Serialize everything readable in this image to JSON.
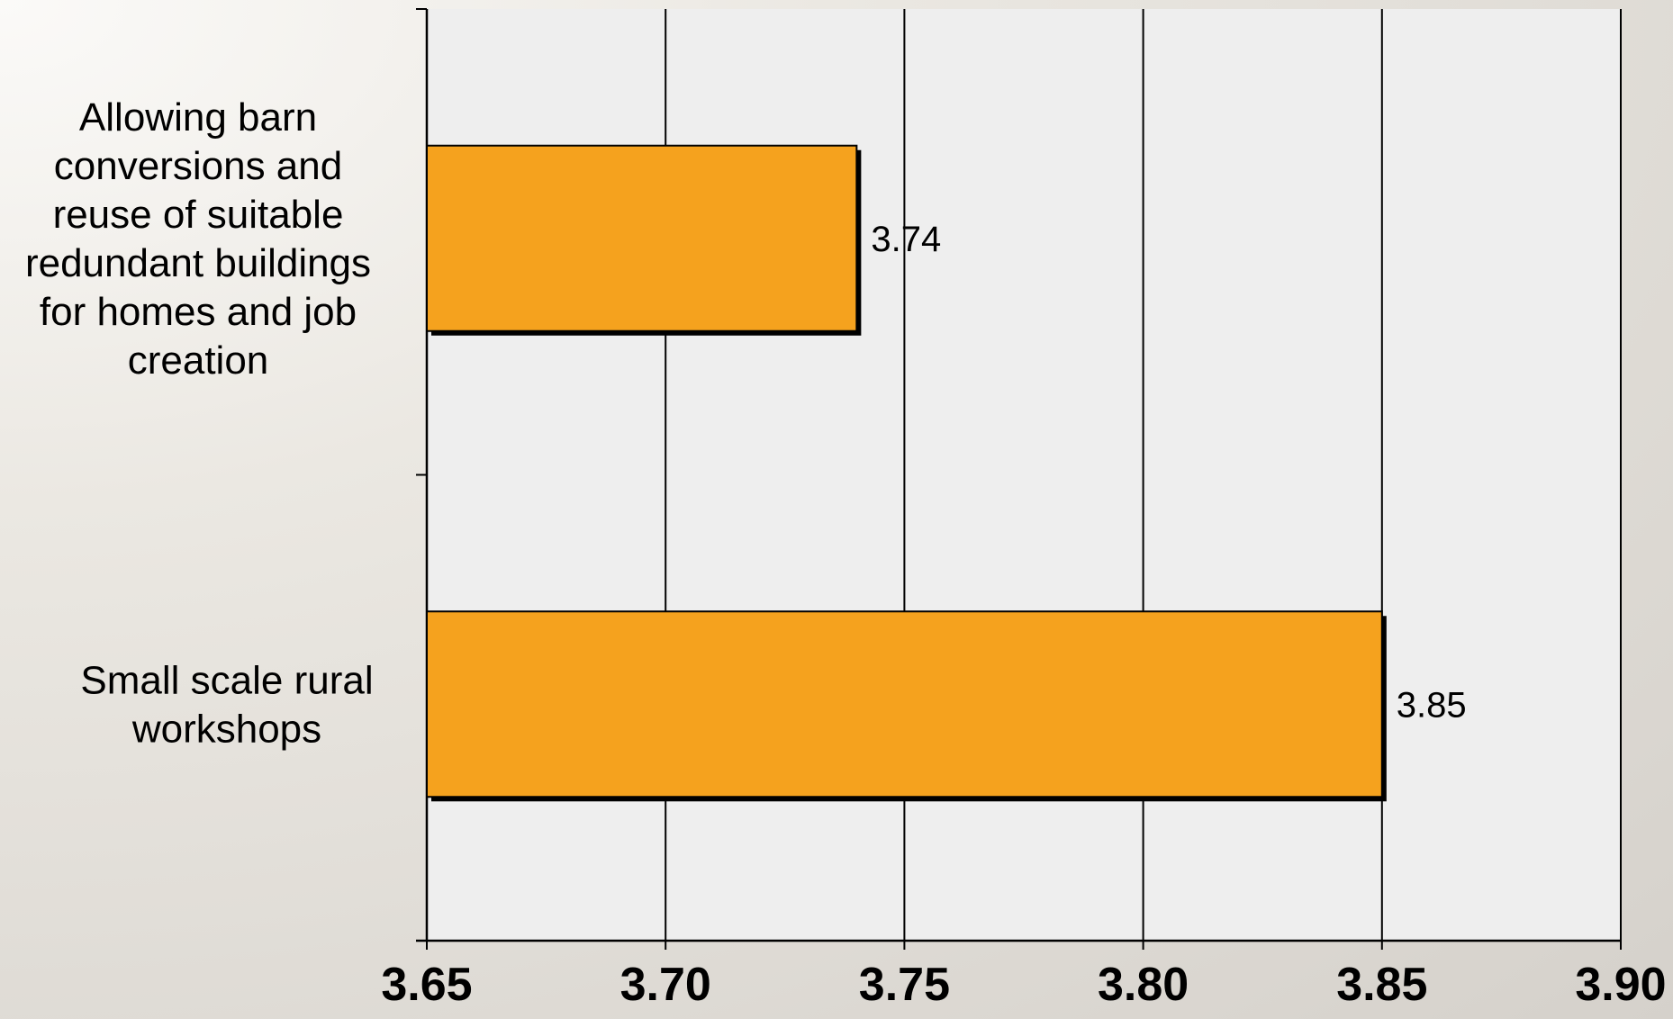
{
  "chart_data": {
    "type": "bar",
    "orientation": "horizontal",
    "categories": [
      "Allowing barn conversions and reuse of suitable redundant buildings for homes and job creation",
      "Small scale rural workshops"
    ],
    "category_label_lines": [
      [
        "Allowing barn",
        "conversions and",
        "reuse of suitable",
        "redundant buildings",
        "for homes and job",
        "creation"
      ],
      [
        "Small scale rural",
        "workshops"
      ]
    ],
    "values": [
      3.74,
      3.85
    ],
    "data_labels": [
      "3.74",
      "3.85"
    ],
    "xlim": [
      3.65,
      3.9
    ],
    "xticks": [
      3.65,
      3.7,
      3.75,
      3.8,
      3.85,
      3.9
    ],
    "xtick_labels": [
      "3.65",
      "3.70",
      "3.75",
      "3.80",
      "3.85",
      "3.90"
    ],
    "grid": "vertical",
    "title": "",
    "xlabel": "",
    "ylabel": "",
    "colors": {
      "bar": "#f5a21e",
      "bar_shadow": "#000000",
      "plot_background": "#eeeeee",
      "gridline": "#000000"
    }
  }
}
